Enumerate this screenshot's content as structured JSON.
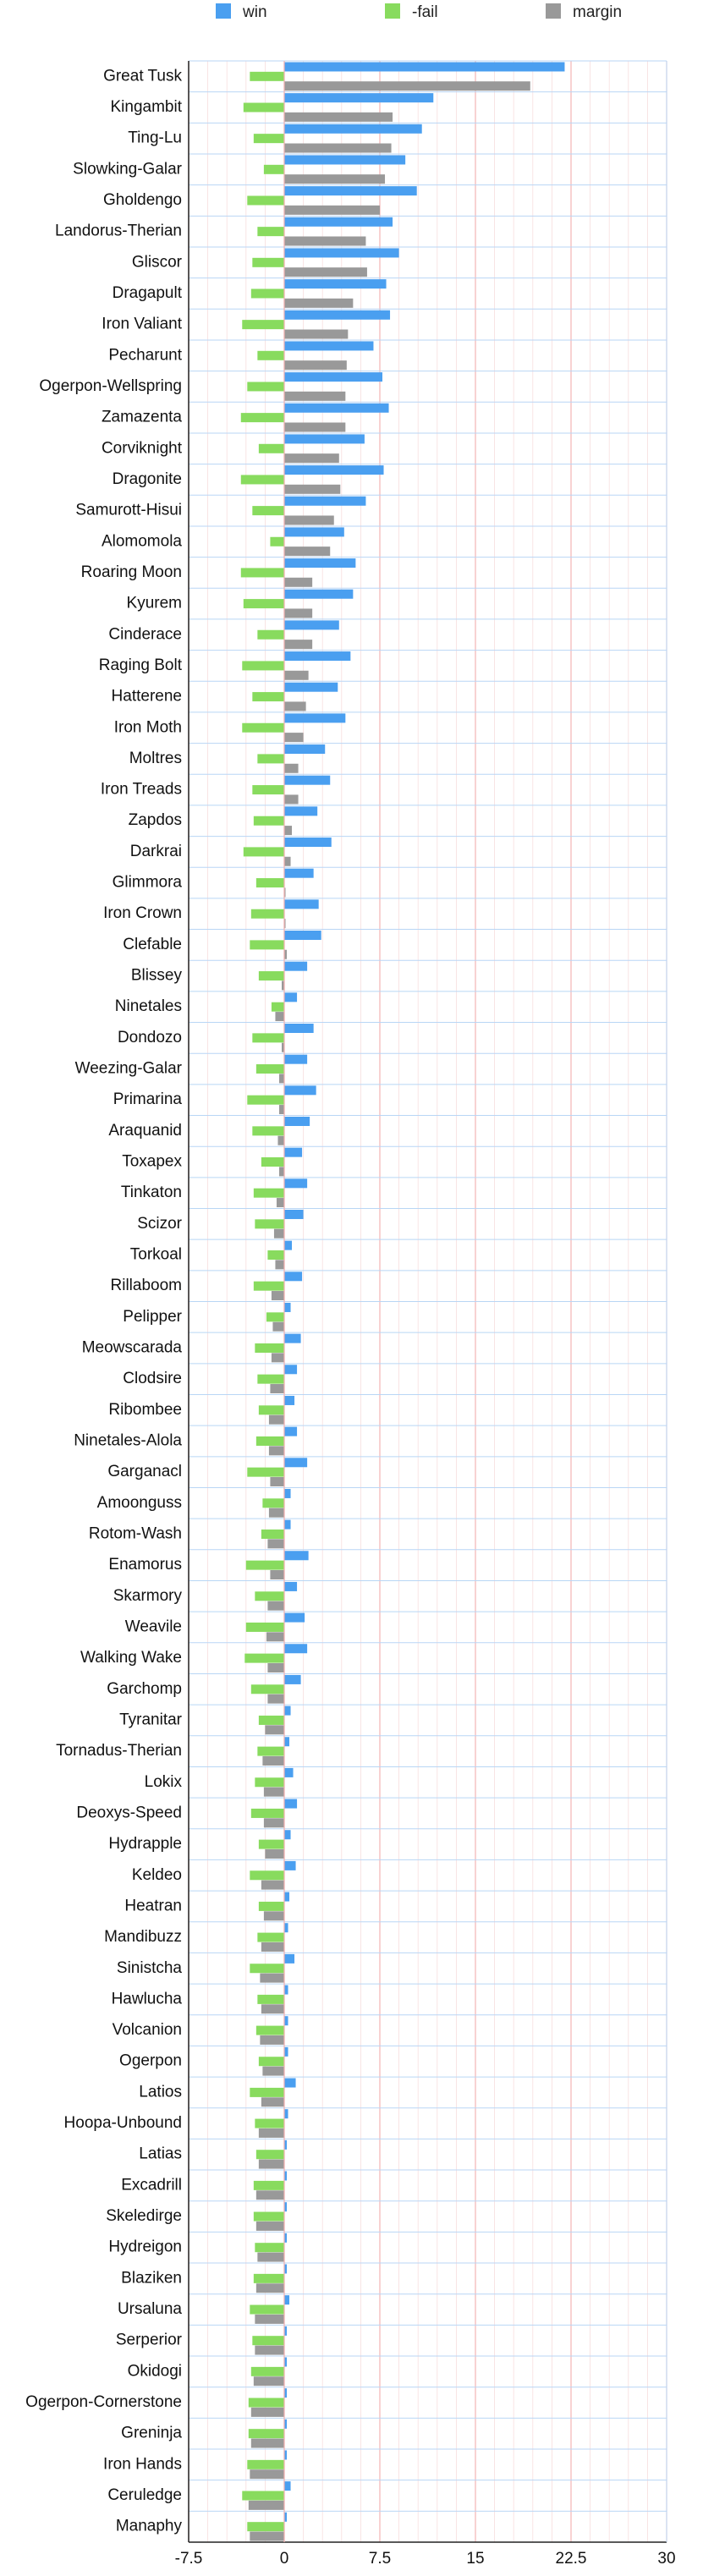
{
  "chart_data": {
    "type": "bar",
    "orientation": "horizontal",
    "legend_position": "top",
    "grid": true,
    "xlim": [
      -7.5,
      30
    ],
    "x_ticks": [
      "-7.5",
      "0",
      "7.5",
      "15",
      "22.5",
      "30"
    ],
    "x_tick_values": [
      -7.5,
      0,
      7.5,
      15,
      22.5,
      30
    ],
    "categories": [
      "Great Tusk",
      "Kingambit",
      "Ting-Lu",
      "Slowking-Galar",
      "Gholdengo",
      "Landorus-Therian",
      "Gliscor",
      "Dragapult",
      "Iron Valiant",
      "Pecharunt",
      "Ogerpon-Wellspring",
      "Zamazenta",
      "Corviknight",
      "Dragonite",
      "Samurott-Hisui",
      "Alomomola",
      "Roaring Moon",
      "Kyurem",
      "Cinderace",
      "Raging Bolt",
      "Hatterene",
      "Iron Moth",
      "Moltres",
      "Iron Treads",
      "Zapdos",
      "Darkrai",
      "Glimmora",
      "Iron Crown",
      "Clefable",
      "Blissey",
      "Ninetales",
      "Dondozo",
      "Weezing-Galar",
      "Primarina",
      "Araquanid",
      "Toxapex",
      "Tinkaton",
      "Scizor",
      "Torkoal",
      "Rillaboom",
      "Pelipper",
      "Meowscarada",
      "Clodsire",
      "Ribombee",
      "Ninetales-Alola",
      "Garganacl",
      "Amoonguss",
      "Rotom-Wash",
      "Enamorus",
      "Skarmory",
      "Weavile",
      "Walking Wake",
      "Garchomp",
      "Tyranitar",
      "Tornadus-Therian",
      "Lokix",
      "Deoxys-Speed",
      "Hydrapple",
      "Keldeo",
      "Heatran",
      "Mandibuzz",
      "Sinistcha",
      "Hawlucha",
      "Volcanion",
      "Ogerpon",
      "Latios",
      "Hoopa-Unbound",
      "Latias",
      "Excadrill",
      "Skeledirge",
      "Hydreigon",
      "Blaziken",
      "Ursaluna",
      "Serperior",
      "Okidogi",
      "Ogerpon-Cornerstone",
      "Greninja",
      "Iron Hands",
      "Ceruledge",
      "Manaphy"
    ],
    "series": [
      {
        "name": "win",
        "color": "#4a9ff0",
        "values": [
          22.0,
          11.7,
          10.8,
          9.5,
          10.4,
          8.5,
          9.0,
          8.0,
          8.3,
          7.0,
          7.7,
          8.2,
          6.3,
          7.8,
          6.4,
          4.7,
          5.6,
          5.4,
          4.3,
          5.2,
          4.2,
          4.8,
          3.2,
          3.6,
          2.6,
          3.7,
          2.3,
          2.7,
          2.9,
          1.8,
          1.0,
          2.3,
          1.8,
          2.5,
          2.0,
          1.4,
          1.8,
          1.5,
          0.6,
          1.4,
          0.5,
          1.3,
          1.0,
          0.8,
          1.0,
          1.8,
          0.5,
          0.5,
          1.9,
          1.0,
          1.6,
          1.8,
          1.3,
          0.5,
          0.4,
          0.7,
          1.0,
          0.5,
          0.9,
          0.4,
          0.3,
          0.8,
          0.3,
          0.3,
          0.3,
          0.9,
          0.3,
          0.2,
          0.2,
          0.2,
          0.2,
          0.2,
          0.4,
          0.2,
          0.2,
          0.2,
          0.2,
          0.2,
          0.5,
          0.2
        ]
      },
      {
        "name": "-fail",
        "color": "#88db5e",
        "values": [
          -2.7,
          -3.2,
          -2.4,
          -1.6,
          -2.9,
          -2.1,
          -2.5,
          -2.6,
          -3.3,
          -2.1,
          -2.9,
          -3.4,
          -2.0,
          -3.4,
          -2.5,
          -1.1,
          -3.4,
          -3.2,
          -2.1,
          -3.3,
          -2.5,
          -3.3,
          -2.1,
          -2.5,
          -2.4,
          -3.2,
          -2.2,
          -2.6,
          -2.7,
          -2.0,
          -1.0,
          -2.5,
          -2.2,
          -2.9,
          -2.5,
          -1.8,
          -2.4,
          -2.3,
          -1.3,
          -2.4,
          -1.4,
          -2.3,
          -2.1,
          -2.0,
          -2.2,
          -2.9,
          -1.7,
          -1.8,
          -3.0,
          -2.3,
          -3.0,
          -3.1,
          -2.6,
          -2.0,
          -2.1,
          -2.3,
          -2.6,
          -2.0,
          -2.7,
          -2.0,
          -2.1,
          -2.7,
          -2.1,
          -2.2,
          -2.0,
          -2.7,
          -2.3,
          -2.2,
          -2.4,
          -2.4,
          -2.3,
          -2.4,
          -2.7,
          -2.5,
          -2.6,
          -2.8,
          -2.8,
          -2.9,
          -3.3,
          -2.9
        ]
      },
      {
        "name": "margin",
        "color": "#999999",
        "values": [
          19.3,
          8.5,
          8.4,
          7.9,
          7.5,
          6.4,
          6.5,
          5.4,
          5.0,
          4.9,
          4.8,
          4.8,
          4.3,
          4.4,
          3.9,
          3.6,
          2.2,
          2.2,
          2.2,
          1.9,
          1.7,
          1.5,
          1.1,
          1.1,
          0.6,
          0.5,
          0.1,
          0.1,
          0.2,
          -0.2,
          -0.7,
          -0.2,
          -0.4,
          -0.4,
          -0.5,
          -0.4,
          -0.6,
          -0.8,
          -0.7,
          -1.0,
          -0.9,
          -1.0,
          -1.1,
          -1.2,
          -1.2,
          -1.1,
          -1.2,
          -1.3,
          -1.1,
          -1.3,
          -1.4,
          -1.3,
          -1.3,
          -1.5,
          -1.7,
          -1.6,
          -1.6,
          -1.5,
          -1.8,
          -1.6,
          -1.8,
          -1.9,
          -1.8,
          -1.9,
          -1.7,
          -1.8,
          -2.0,
          -2.0,
          -2.2,
          -2.2,
          -2.1,
          -2.2,
          -2.3,
          -2.3,
          -2.4,
          -2.6,
          -2.6,
          -2.7,
          -2.8,
          -2.7
        ]
      }
    ]
  }
}
